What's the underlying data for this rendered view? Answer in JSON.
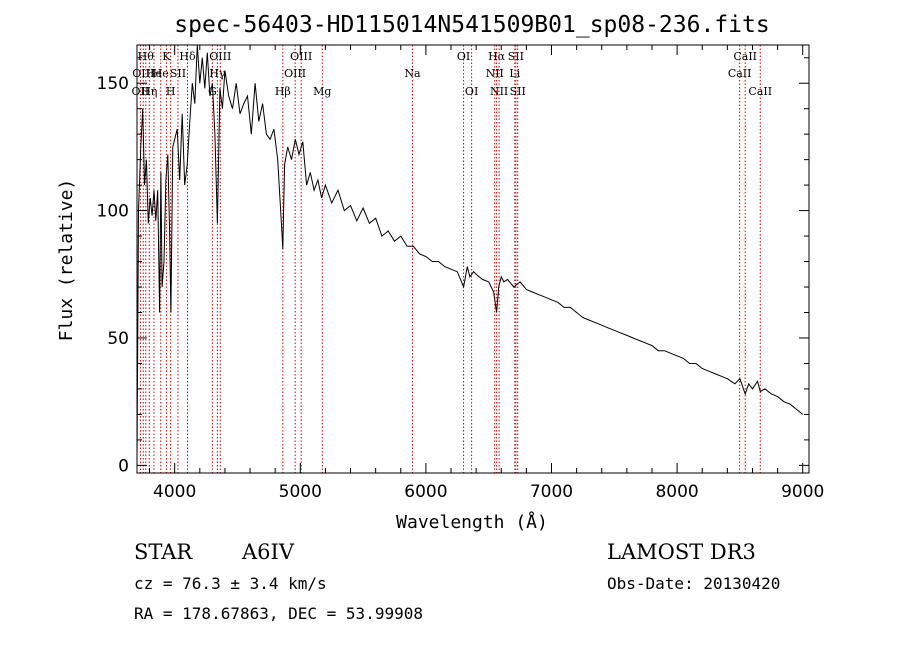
{
  "chart_data": {
    "type": "line",
    "title": "spec-56403-HD115014N541509B01_sp08-236.fits",
    "xlabel": "Wavelength (Å)",
    "ylabel": "Flux (relative)",
    "xlim": [
      3700,
      9050
    ],
    "ylim": [
      -3,
      165
    ],
    "xticks": [
      4000,
      5000,
      6000,
      7000,
      8000,
      9000
    ],
    "xtick_labels": [
      "4000",
      "5000",
      "6000",
      "7000",
      "8000",
      "9000"
    ],
    "yticks": [
      0,
      50,
      100,
      150
    ],
    "ytick_labels": [
      "0",
      "50",
      "100",
      "150"
    ],
    "series": [
      {
        "name": "flux",
        "x": [
          3700,
          3712,
          3730,
          3745,
          3760,
          3775,
          3790,
          3805,
          3820,
          3835,
          3850,
          3865,
          3880,
          3890,
          3900,
          3915,
          3930,
          3945,
          3960,
          3970,
          3985,
          4000,
          4020,
          4040,
          4060,
          4080,
          4100,
          4120,
          4140,
          4160,
          4180,
          4200,
          4220,
          4240,
          4260,
          4280,
          4300,
          4320,
          4340,
          4360,
          4380,
          4400,
          4430,
          4460,
          4490,
          4520,
          4550,
          4580,
          4610,
          4640,
          4670,
          4700,
          4730,
          4760,
          4790,
          4820,
          4850,
          4861,
          4875,
          4900,
          4930,
          4960,
          4990,
          5020,
          5050,
          5080,
          5110,
          5140,
          5170,
          5200,
          5250,
          5300,
          5350,
          5400,
          5450,
          5500,
          5550,
          5600,
          5650,
          5700,
          5750,
          5800,
          5850,
          5900,
          5950,
          6000,
          6050,
          6100,
          6150,
          6200,
          6250,
          6300,
          6330,
          6350,
          6380,
          6400,
          6450,
          6500,
          6540,
          6563,
          6580,
          6600,
          6620,
          6650,
          6700,
          6750,
          6800,
          6850,
          6900,
          6950,
          7000,
          7050,
          7100,
          7150,
          7200,
          7250,
          7300,
          7350,
          7400,
          7450,
          7500,
          7550,
          7600,
          7650,
          7700,
          7750,
          7800,
          7850,
          7900,
          7950,
          8000,
          8050,
          8100,
          8150,
          8200,
          8250,
          8300,
          8350,
          8400,
          8430,
          8460,
          8500,
          8542,
          8570,
          8600,
          8640,
          8662,
          8700,
          8750,
          8800,
          8850,
          8900,
          8950,
          9000
        ],
        "y": [
          1,
          100,
          125,
          140,
          110,
          120,
          95,
          105,
          98,
          108,
          96,
          108,
          60,
          115,
          70,
          80,
          112,
          122,
          90,
          60,
          125,
          128,
          132,
          112,
          138,
          110,
          118,
          135,
          150,
          142,
          165,
          150,
          160,
          148,
          162,
          145,
          150,
          130,
          95,
          148,
          140,
          155,
          145,
          140,
          150,
          138,
          142,
          145,
          130,
          150,
          135,
          142,
          130,
          128,
          132,
          120,
          95,
          85,
          118,
          125,
          120,
          128,
          122,
          127,
          110,
          115,
          108,
          112,
          105,
          110,
          103,
          108,
          100,
          102,
          96,
          101,
          95,
          97,
          90,
          92,
          88,
          90,
          86,
          86,
          83,
          82,
          80,
          80,
          78,
          77,
          76,
          70,
          78,
          74,
          76,
          75,
          73,
          72,
          68,
          60,
          70,
          74,
          72,
          73,
          70,
          72,
          69,
          68,
          67,
          66,
          65,
          64,
          62,
          62,
          60,
          58,
          57,
          56,
          55,
          54,
          53,
          52,
          51,
          50,
          49,
          48,
          47,
          45,
          45,
          44,
          43,
          42,
          40,
          40,
          38,
          37,
          36,
          35,
          34,
          33,
          32,
          34,
          28,
          32,
          30,
          33,
          29,
          30,
          28,
          27,
          25,
          24,
          22,
          20
        ]
      }
    ],
    "line_markers": [
      {
        "wl": 3727,
        "label": "OII",
        "row": 2
      },
      {
        "wl": 3750,
        "label": "OIII",
        "row": 1
      },
      {
        "wl": 3770,
        "label": "Hθ",
        "row": 0
      },
      {
        "wl": 3798,
        "label": "Hη",
        "row": 2
      },
      {
        "wl": 3835,
        "label": "He",
        "row": 1
      },
      {
        "wl": 3889,
        "label": "He",
        "row": 1
      },
      {
        "wl": 3934,
        "label": "K",
        "row": 0
      },
      {
        "wl": 3968,
        "label": "H",
        "row": 2
      },
      {
        "wl": 4026,
        "label": "SII",
        "row": 1
      },
      {
        "wl": 4102,
        "label": "Hδ",
        "row": 0
      },
      {
        "wl": 4300,
        "label": "G",
        "row": 2
      },
      {
        "wl": 4340,
        "label": "Hγ",
        "row": 1
      },
      {
        "wl": 4363,
        "label": "OIII",
        "row": 0
      },
      {
        "wl": 4861,
        "label": "Hβ",
        "row": 2
      },
      {
        "wl": 4959,
        "label": "OIII",
        "row": 1
      },
      {
        "wl": 5007,
        "label": "OIII",
        "row": 0
      },
      {
        "wl": 5175,
        "label": "Mg",
        "row": 2
      },
      {
        "wl": 5893,
        "label": "Na",
        "row": 1
      },
      {
        "wl": 6300,
        "label": "OI",
        "row": 0
      },
      {
        "wl": 6364,
        "label": "OI",
        "row": 2
      },
      {
        "wl": 6548,
        "label": "NII",
        "row": 1
      },
      {
        "wl": 6563,
        "label": "Hα",
        "row": 0
      },
      {
        "wl": 6583,
        "label": "NII",
        "row": 2
      },
      {
        "wl": 6708,
        "label": "Li",
        "row": 1
      },
      {
        "wl": 6716,
        "label": "SII",
        "row": 0
      },
      {
        "wl": 6731,
        "label": "SII",
        "row": 2
      },
      {
        "wl": 8498,
        "label": "CaII",
        "row": 1
      },
      {
        "wl": 8542,
        "label": "CaII",
        "row": 0
      },
      {
        "wl": 8662,
        "label": "CaII",
        "row": 2
      }
    ]
  },
  "info": {
    "object_class": "STAR",
    "subclass": "A6IV",
    "survey": "LAMOST DR3",
    "cz_line": "cz = 76.3 ± 3.4 km/s",
    "obs_date": "Obs-Date: 20130420",
    "radec": "RA = 178.67863, DEC =  53.99908"
  },
  "colors": {
    "spectrum": "#000000",
    "marker_line": "#cc0000",
    "axis": "#000000",
    "background": "#ffffff"
  }
}
